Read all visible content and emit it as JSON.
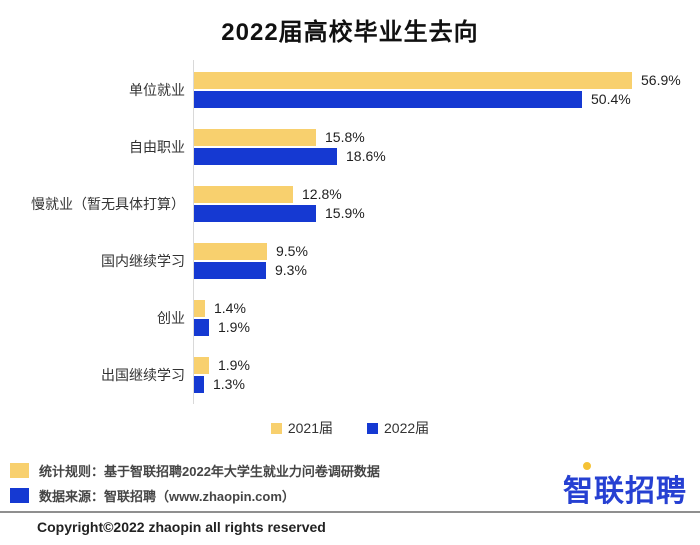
{
  "title": "2022届高校毕业生去向",
  "chart_data": {
    "type": "bar",
    "orientation": "horizontal",
    "title": "2022届高校毕业生去向",
    "categories": [
      "单位就业",
      "自由职业",
      "慢就业（暂无具体打算）",
      "国内继续学习",
      "创业",
      "出国继续学习"
    ],
    "series": [
      {
        "name": "2021届",
        "color": "#f8d06e",
        "values": [
          56.9,
          15.8,
          12.8,
          9.5,
          1.4,
          1.9
        ]
      },
      {
        "name": "2022届",
        "color": "#1539d2",
        "values": [
          50.4,
          18.6,
          15.9,
          9.3,
          1.9,
          1.3
        ]
      }
    ],
    "value_suffix": "%",
    "xlim": [
      0,
      60
    ],
    "grid": false,
    "legend_position": "bottom"
  },
  "legend": {
    "items": [
      {
        "label": "2021届",
        "color": "#f8d06e"
      },
      {
        "label": "2022届",
        "color": "#1539d2"
      }
    ]
  },
  "footer": {
    "notes": [
      {
        "color": "#f8d06e",
        "text": "统计规则：基于智联招聘2022年大学生就业力问卷调研数据"
      },
      {
        "color": "#1539d2",
        "text": "数据来源：智联招聘（www.zhaopin.com）"
      }
    ],
    "logo_text": "智联招聘",
    "copyright": "Copyright©2022 zhaopin all rights reserved"
  },
  "colors": {
    "series_2021": "#f8d06e",
    "series_2022": "#1539d2",
    "axis_line": "#d9d9d9",
    "divider": "#8f8f8f",
    "logo_blue": "#2640d2",
    "logo_yellow": "#f5c235"
  }
}
